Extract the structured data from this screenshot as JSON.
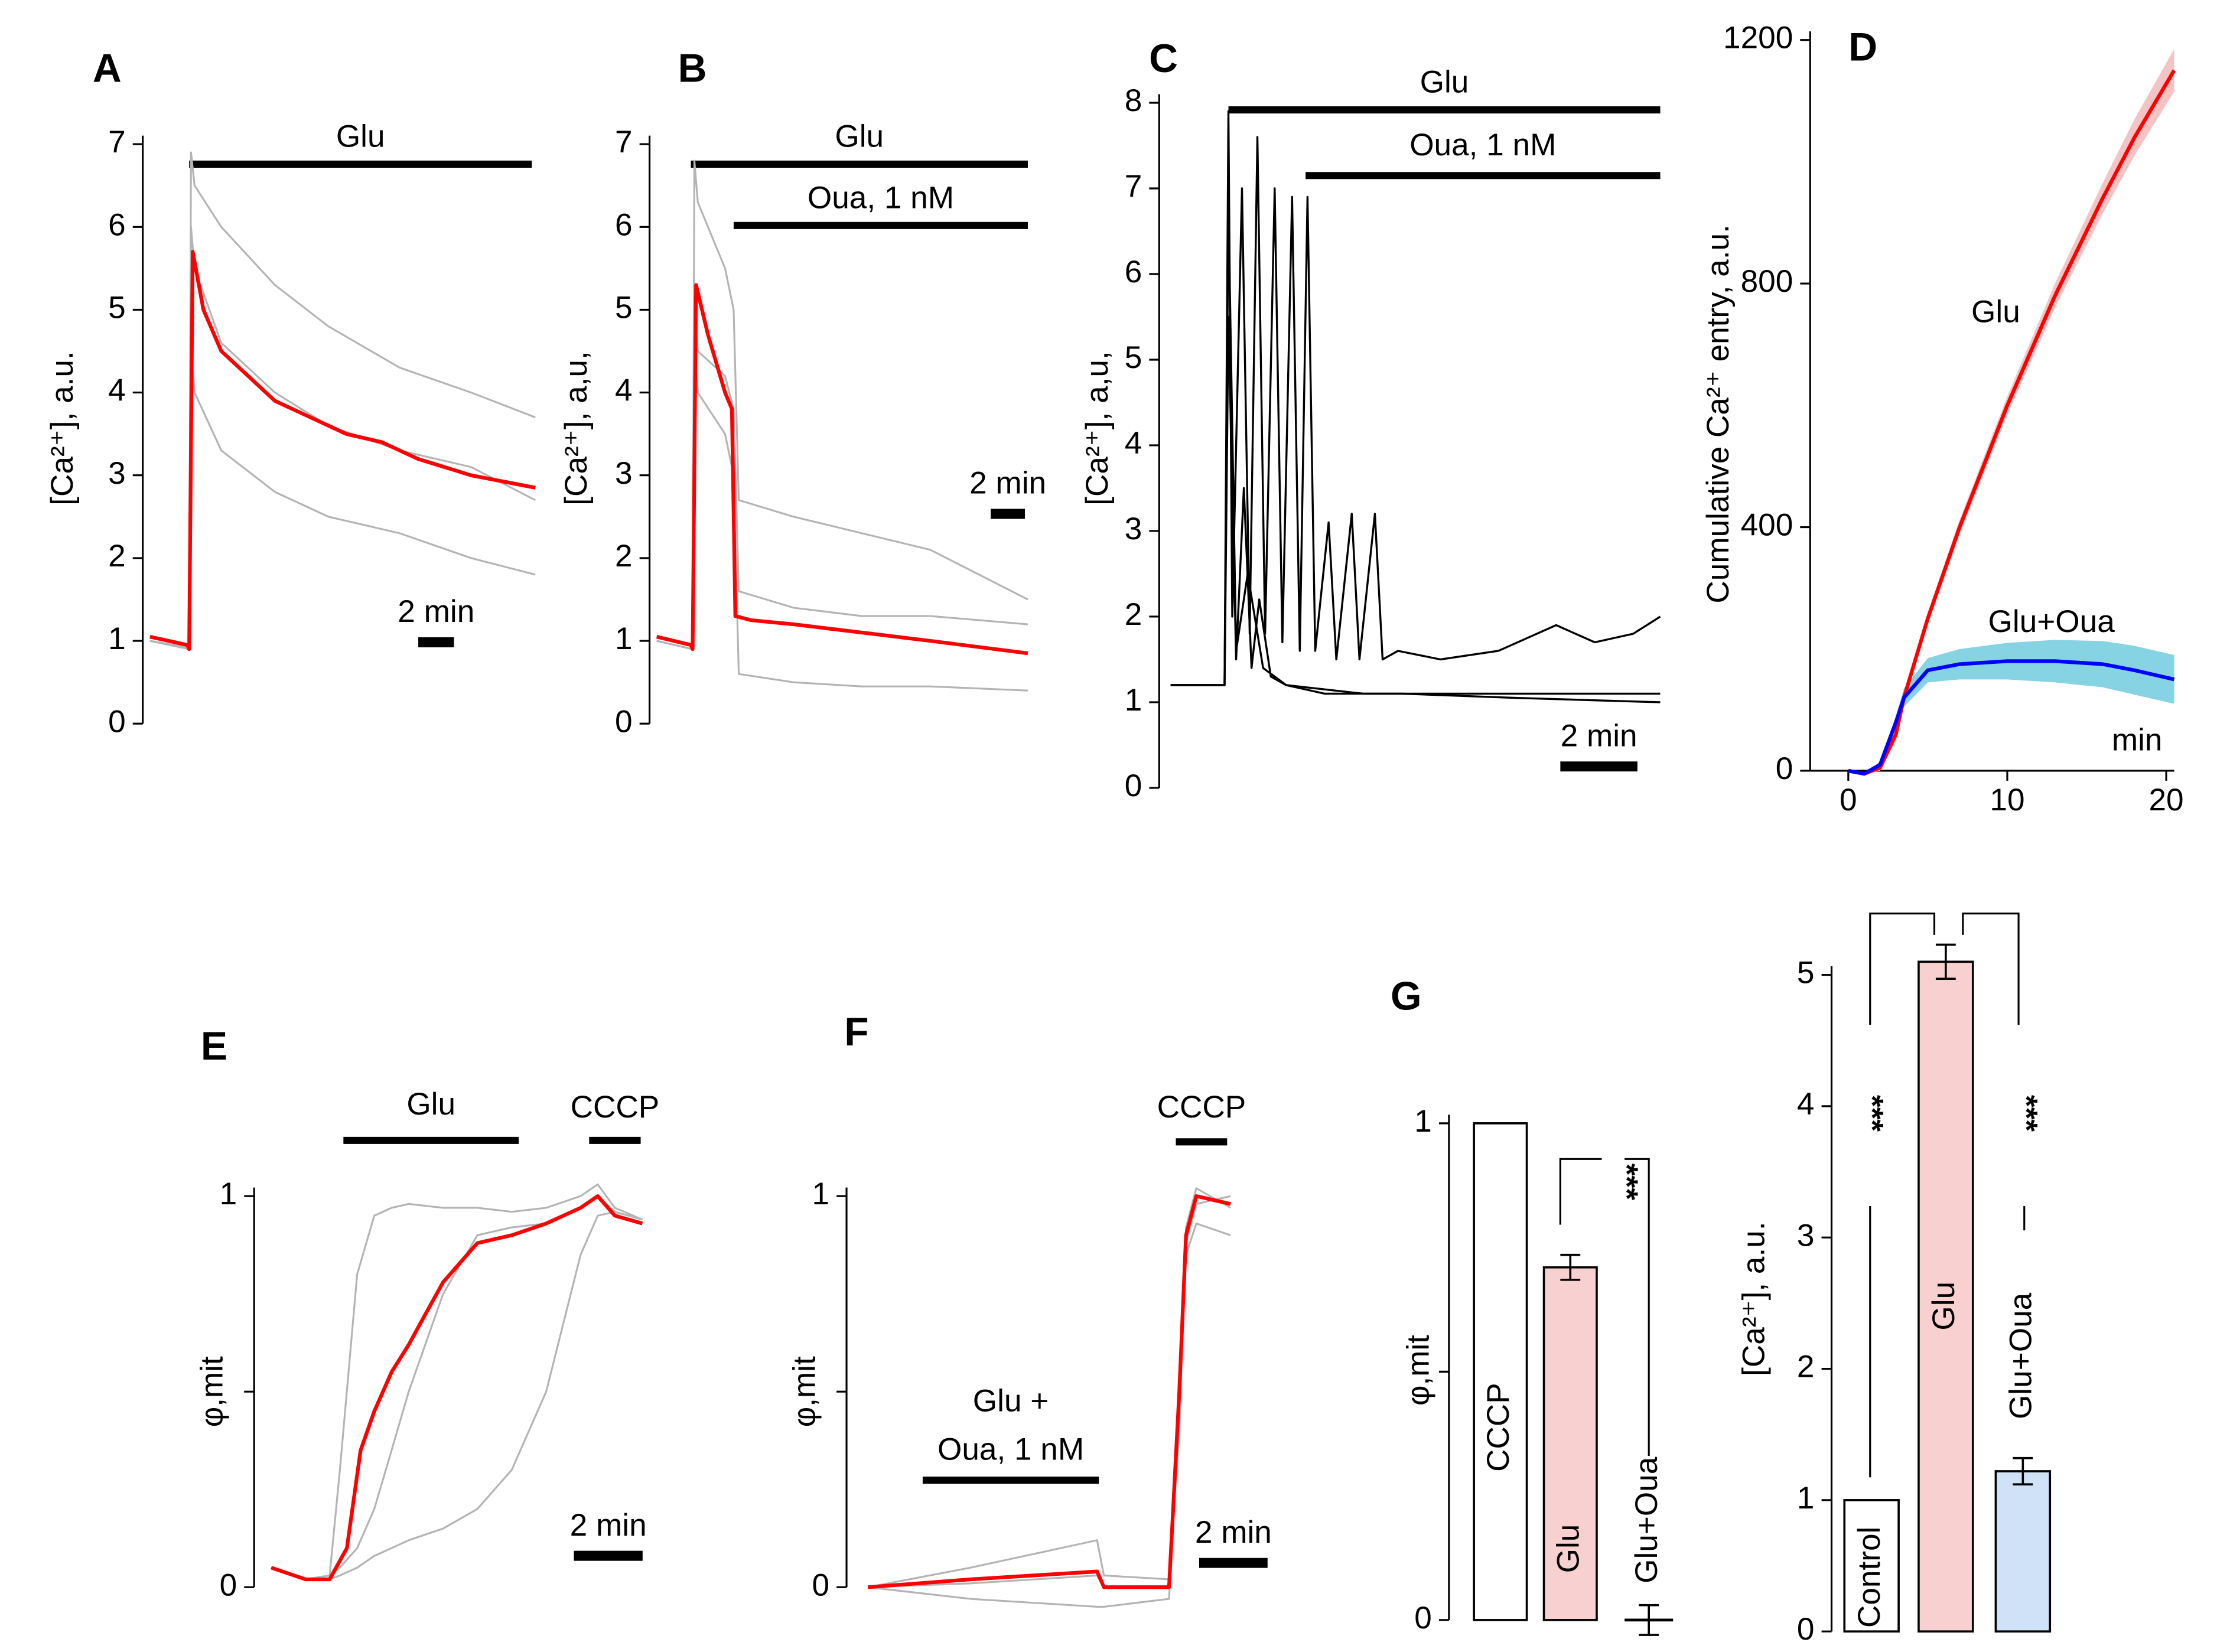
{
  "chart_data": [
    {
      "type": "line",
      "label": "A",
      "ylabel": "[Ca²⁺], a.u.",
      "xlim": [
        0,
        21.6
      ],
      "ylim": [
        0,
        7
      ],
      "yticks": [
        0,
        1,
        2,
        3,
        4,
        5,
        6,
        7
      ],
      "bars": [
        {
          "label": "Glu",
          "start": 2.2,
          "end": 21.4
        }
      ],
      "scalebar": {
        "value": 2,
        "label": "2 min"
      },
      "series": [
        {
          "color": "#b4b4b4",
          "x": [
            0,
            2.2,
            2.3,
            2.5,
            4,
            7,
            10,
            14,
            18,
            21.6
          ],
          "values": [
            1.05,
            0.95,
            6.9,
            6.5,
            6.0,
            5.3,
            4.8,
            4.3,
            4.0,
            3.7
          ]
        },
        {
          "color": "#b4b4b4",
          "x": [
            0,
            2.2,
            2.3,
            2.5,
            4,
            7,
            10,
            14,
            18,
            21.6
          ],
          "values": [
            1.0,
            0.9,
            4.5,
            4.0,
            3.3,
            2.8,
            2.5,
            2.3,
            2.0,
            1.8
          ]
        },
        {
          "color": "#b4b4b4",
          "x": [
            0,
            2.2,
            2.3,
            2.5,
            4,
            7,
            10,
            14,
            18,
            21.6
          ],
          "values": [
            1.0,
            0.92,
            6.0,
            5.5,
            4.6,
            4.0,
            3.6,
            3.3,
            3.1,
            2.7
          ]
        },
        {
          "color": "#ff0000",
          "x": [
            0,
            2.1,
            2.2,
            2.4,
            3,
            4,
            5.5,
            7,
            9,
            11,
            13,
            15,
            18,
            21.6
          ],
          "values": [
            1.05,
            0.95,
            0.9,
            5.7,
            5.0,
            4.5,
            4.2,
            3.9,
            3.7,
            3.5,
            3.4,
            3.2,
            3.0,
            2.85
          ]
        }
      ]
    },
    {
      "type": "line",
      "label": "B",
      "ylabel": "[Ca²⁺], a,u,",
      "xlim": [
        0,
        21.7
      ],
      "ylim": [
        0,
        7
      ],
      "yticks": [
        0,
        1,
        2,
        3,
        4,
        5,
        6,
        7
      ],
      "bars": [
        {
          "label": "Glu",
          "start": 2.0,
          "end": 21.7
        },
        {
          "label": "Oua, 1 nM",
          "start": 4.5,
          "end": 21.7
        }
      ],
      "scalebar": {
        "value": 2,
        "label": "2 min"
      },
      "series": [
        {
          "color": "#b4b4b4",
          "x": [
            0,
            2.1,
            2.2,
            2.4,
            4,
            4.5,
            4.8,
            8,
            12,
            16,
            21.7
          ],
          "values": [
            1.05,
            0.95,
            6.8,
            6.3,
            5.5,
            5.0,
            2.7,
            2.5,
            2.3,
            2.1,
            1.5
          ]
        },
        {
          "color": "#b4b4b4",
          "x": [
            0,
            2.1,
            2.2,
            2.4,
            4,
            4.5,
            4.8,
            8,
            12,
            16,
            21.7
          ],
          "values": [
            1.0,
            0.9,
            5.0,
            4.5,
            4.2,
            3.8,
            1.6,
            1.4,
            1.3,
            1.3,
            1.2
          ]
        },
        {
          "color": "#b4b4b4",
          "x": [
            0,
            2.1,
            2.2,
            2.4,
            4,
            4.5,
            4.8,
            8,
            12,
            16,
            21.7
          ],
          "values": [
            1.0,
            0.9,
            4.5,
            4.0,
            3.5,
            3.0,
            0.6,
            0.5,
            0.45,
            0.45,
            0.4
          ]
        },
        {
          "color": "#ff0000",
          "x": [
            0,
            2.0,
            2.1,
            2.3,
            3,
            4,
            4.4,
            4.6,
            5.5,
            8,
            12,
            16,
            21.7
          ],
          "values": [
            1.05,
            0.95,
            0.9,
            5.3,
            4.7,
            4.0,
            3.8,
            1.3,
            1.25,
            1.2,
            1.1,
            1.0,
            0.85
          ]
        }
      ]
    },
    {
      "type": "line",
      "label": "C",
      "ylabel": "[Ca²⁺], a,u,",
      "xlim": [
        0,
        12.7
      ],
      "ylim": [
        0,
        8
      ],
      "yticks": [
        0,
        1,
        2,
        3,
        4,
        5,
        6,
        7,
        8
      ],
      "bars": [
        {
          "label": "Glu",
          "start": 1.5,
          "end": 12.7
        },
        {
          "label": "Oua, 1 nM",
          "start": 3.5,
          "end": 12.7
        }
      ],
      "scalebar": {
        "value": 2,
        "label": "2 min"
      },
      "series": [
        {
          "color": "#000000",
          "x": [
            0,
            1.4,
            1.5,
            1.6,
            1.85,
            2.05,
            2.25,
            2.45,
            2.7,
            2.9,
            3.15,
            3.35,
            3.55,
            3.75,
            4.1,
            4.3,
            4.7,
            4.9,
            5.3,
            5.5,
            5.9,
            7,
            8.5,
            10,
            11,
            12,
            12.7
          ],
          "values": [
            1.2,
            1.2,
            7.9,
            2.0,
            7.0,
            1.8,
            7.6,
            1.8,
            7.0,
            1.7,
            6.9,
            1.6,
            6.9,
            1.6,
            3.1,
            1.5,
            3.2,
            1.5,
            3.2,
            1.5,
            1.6,
            1.5,
            1.6,
            1.9,
            1.7,
            1.8,
            2.0
          ]
        },
        {
          "color": "#000000",
          "x": [
            0,
            1.4,
            1.5,
            1.7,
            1.9,
            2.1,
            2.3,
            2.6,
            3.0,
            4,
            6,
            9,
            12.7
          ],
          "values": [
            1.2,
            1.2,
            5.5,
            1.5,
            3.5,
            1.4,
            2.2,
            1.3,
            1.2,
            1.1,
            1.1,
            1.05,
            1.0
          ]
        },
        {
          "color": "#000000",
          "x": [
            0,
            1.4,
            1.5,
            1.7,
            2.0,
            2.4,
            3,
            5,
            8,
            12.7
          ],
          "values": [
            1.2,
            1.2,
            6.8,
            1.6,
            2.5,
            1.4,
            1.2,
            1.1,
            1.1,
            1.1
          ]
        }
      ]
    },
    {
      "type": "band-line",
      "label": "D",
      "ylabel": "Cumulative Ca²⁺ entry, a.u.",
      "xlabel": "min",
      "xlim": [
        -2.4,
        20.5
      ],
      "ylim": [
        0,
        1200
      ],
      "xticks": [
        0,
        10,
        20
      ],
      "yticks": [
        0,
        400,
        800,
        1200
      ],
      "series": [
        {
          "name": "Glu",
          "color": "#ff0000",
          "band_color": "#f4c4c4",
          "x": [
            0,
            1,
            2,
            3,
            3.5,
            5,
            7,
            10,
            13,
            16,
            18,
            20.5
          ],
          "values": [
            0,
            -5,
            5,
            60,
            120,
            250,
            400,
            600,
            780,
            940,
            1040,
            1150
          ],
          "errors": [
            0,
            0,
            5,
            10,
            10,
            10,
            12,
            15,
            20,
            25,
            30,
            35
          ]
        },
        {
          "name": "Glu+Oua",
          "color": "#0000ff",
          "band_color": "#86d3e4",
          "x": [
            0,
            1,
            2,
            3,
            3.5,
            5,
            7,
            10,
            13,
            16,
            18,
            20.5
          ],
          "values": [
            0,
            -5,
            10,
            80,
            120,
            165,
            175,
            180,
            180,
            175,
            165,
            150
          ],
          "errors": [
            0,
            0,
            5,
            10,
            15,
            20,
            25,
            30,
            35,
            38,
            40,
            40
          ]
        }
      ]
    },
    {
      "type": "line",
      "label": "E",
      "ylabel": "φ,mit",
      "xlim": [
        0,
        10.8
      ],
      "ylim": [
        0,
        1
      ],
      "yticks": [
        0,
        1
      ],
      "minor_yticks": [
        0.5
      ],
      "bars": [
        {
          "label": "Glu",
          "start": 2.1,
          "end": 7.2
        },
        {
          "label": "CCCP",
          "start": 9.25,
          "end": 10.75
        }
      ],
      "scalebar": {
        "value": 2,
        "label": "2 min"
      },
      "series": [
        {
          "color": "#b4b4b4",
          "x": [
            0,
            1,
            1.7,
            2,
            2.5,
            3,
            3.5,
            4,
            5,
            6,
            7,
            8,
            9,
            9.5,
            10,
            10.8
          ],
          "values": [
            0.05,
            0.02,
            0.03,
            0.3,
            0.8,
            0.95,
            0.97,
            0.98,
            0.97,
            0.97,
            0.96,
            0.97,
            1.0,
            1.03,
            0.97,
            0.94
          ]
        },
        {
          "color": "#b4b4b4",
          "x": [
            0,
            1,
            1.7,
            2,
            2.5,
            3,
            3.5,
            4,
            5,
            6,
            7,
            8,
            9,
            9.5,
            10,
            10.8
          ],
          "values": [
            0.05,
            0.02,
            0.02,
            0.03,
            0.05,
            0.08,
            0.1,
            0.12,
            0.15,
            0.2,
            0.3,
            0.5,
            0.85,
            0.95,
            0.96,
            0.94
          ]
        },
        {
          "color": "#b4b4b4",
          "x": [
            0,
            1,
            1.7,
            2,
            2.5,
            3,
            3.5,
            4,
            5,
            6,
            7,
            8,
            9,
            9.5,
            10,
            10.8
          ],
          "values": [
            0.05,
            0.02,
            0.03,
            0.05,
            0.1,
            0.2,
            0.35,
            0.5,
            0.75,
            0.9,
            0.92,
            0.93,
            0.97,
            1.0,
            0.96,
            0.94
          ]
        },
        {
          "color": "#ff0000",
          "x": [
            0,
            1,
            1.7,
            2.2,
            2.6,
            3,
            3.5,
            4,
            4.5,
            5,
            5.5,
            6,
            7,
            8,
            9,
            9.5,
            10,
            10.8
          ],
          "values": [
            0.05,
            0.02,
            0.02,
            0.1,
            0.35,
            0.45,
            0.55,
            0.62,
            0.7,
            0.78,
            0.83,
            0.88,
            0.9,
            0.93,
            0.97,
            1.0,
            0.95,
            0.93
          ]
        }
      ]
    },
    {
      "type": "line",
      "label": "F",
      "ylabel": "φ,mit",
      "xlim": [
        0,
        10.6
      ],
      "ylim": [
        0,
        1
      ],
      "yticks": [
        0,
        1
      ],
      "minor_yticks": [
        0.5
      ],
      "bars": [
        {
          "label": [
            "Glu +",
            "Oua, 1 nM"
          ],
          "start": 1.6,
          "end": 6.75
        },
        {
          "label": "CCCP",
          "start": 9.0,
          "end": 10.5
        }
      ],
      "scalebar": {
        "value": 2,
        "label": "2 min"
      },
      "series": [
        {
          "color": "#b4b4b4",
          "x": [
            0,
            3,
            6.7,
            6.9,
            8.8,
            9.1,
            9.3,
            9.6,
            10.6
          ],
          "values": [
            0.0,
            0.05,
            0.12,
            0.03,
            0.02,
            0.4,
            0.92,
            1.02,
            0.97
          ]
        },
        {
          "color": "#b4b4b4",
          "x": [
            0,
            3,
            6.7,
            6.9,
            8.8,
            9.1,
            9.3,
            9.6,
            10.6
          ],
          "values": [
            0.0,
            -0.03,
            -0.05,
            -0.05,
            -0.03,
            0.45,
            0.85,
            0.93,
            0.9
          ]
        },
        {
          "color": "#b4b4b4",
          "x": [
            0,
            3,
            6.7,
            6.9,
            8.8,
            9.1,
            9.3,
            9.6,
            10.6
          ],
          "values": [
            0.0,
            0.01,
            0.03,
            0.0,
            0.0,
            0.5,
            0.88,
            0.98,
            1.0
          ]
        },
        {
          "color": "#ff0000",
          "x": [
            0,
            3,
            6.7,
            6.9,
            8.8,
            9.1,
            9.3,
            9.6,
            10.6
          ],
          "values": [
            0,
            0.02,
            0.04,
            0.0,
            0.0,
            0.5,
            0.9,
            1.0,
            0.98
          ]
        }
      ]
    },
    {
      "type": "bar",
      "label": "G",
      "ylabel": "φ,mit",
      "ylim": [
        0,
        1
      ],
      "yticks": [
        0,
        1
      ],
      "minor_yticks": [
        0.5
      ],
      "categories": [
        "CCCP",
        "Glu",
        "Glu+Oua"
      ],
      "values": [
        1,
        0.71,
        0
      ],
      "errors": [
        null,
        0.025,
        0.03
      ],
      "colors": [
        "#ffffff",
        "#f9d0d0",
        "#ffffff"
      ],
      "label_colors": [
        "#000000",
        "#e00000",
        "#00008b"
      ],
      "significance": [
        "***"
      ]
    },
    {
      "type": "bar",
      "ylabel": "[Ca²⁺], a.u.",
      "ylim": [
        0,
        5
      ],
      "yticks": [
        0,
        1,
        2,
        3,
        4,
        5
      ],
      "categories": [
        "Control",
        "Glu",
        "Glu+Oua"
      ],
      "values": [
        1,
        5.1,
        1.22
      ],
      "errors": [
        null,
        0.13,
        0.1
      ],
      "colors": [
        "#ffffff",
        "#f9d0d0",
        "#cfe2f8"
      ],
      "label_colors": [
        "#000000",
        "#e00000",
        "#00008b"
      ],
      "significance": [
        "***",
        "***"
      ]
    }
  ]
}
